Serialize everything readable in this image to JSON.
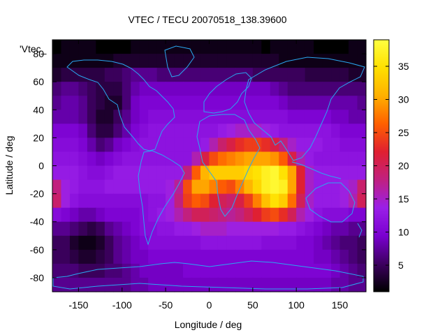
{
  "chart_data": {
    "type": "heatmap",
    "title": "VTEC / TECU 20070518_138.39600",
    "xlabel": "Longitude / deg",
    "ylabel": "Latitude / deg",
    "series_label": "'Vtec_",
    "xlim": [
      -180,
      180
    ],
    "ylim": [
      -90,
      90
    ],
    "xticks": [
      -150,
      -100,
      -50,
      0,
      50,
      100,
      150
    ],
    "yticks": [
      -80,
      -60,
      -40,
      -20,
      0,
      20,
      40,
      60,
      80
    ],
    "colorbar": {
      "range": [
        1,
        39
      ],
      "ticks": [
        5,
        10,
        15,
        20,
        25,
        30,
        35
      ],
      "palette": [
        "#000000",
        "#3d0060",
        "#7a00d0",
        "#9a20e8",
        "#c02080",
        "#e02030",
        "#ff6000",
        "#ffb000",
        "#ffe000",
        "#ffff40"
      ]
    },
    "grid": {
      "lon_step": 10,
      "lat_step": 10
    },
    "vtec_grid": [
      [
        1,
        2,
        2,
        2,
        2,
        1,
        1,
        1,
        1,
        2,
        2,
        2,
        2,
        2,
        2,
        2,
        2,
        2,
        2,
        2,
        2,
        2,
        2,
        2,
        1,
        2,
        2,
        2,
        2,
        2,
        1,
        1,
        1,
        1,
        2,
        2
      ],
      [
        2,
        2,
        2,
        2,
        2,
        2,
        2,
        3,
        3,
        3,
        3,
        3,
        3,
        3,
        3,
        3,
        3,
        3,
        3,
        3,
        3,
        3,
        3,
        3,
        3,
        3,
        2,
        2,
        2,
        2,
        2,
        2,
        2,
        2,
        2,
        2
      ],
      [
        3,
        4,
        4,
        4,
        4,
        4,
        5,
        5,
        6,
        7,
        7,
        7,
        6,
        6,
        6,
        6,
        6,
        6,
        6,
        6,
        6,
        6,
        6,
        5,
        5,
        5,
        5,
        5,
        5,
        4,
        4,
        4,
        4,
        4,
        3,
        3
      ],
      [
        6,
        7,
        7,
        6,
        5,
        4,
        4,
        4,
        6,
        8,
        9,
        9,
        9,
        9,
        9,
        9,
        9,
        9,
        9,
        9,
        9,
        9,
        9,
        9,
        9,
        8,
        7,
        6,
        6,
        6,
        6,
        6,
        6,
        6,
        6,
        6
      ],
      [
        7,
        8,
        8,
        7,
        5,
        4,
        3,
        3,
        6,
        9,
        10,
        10,
        10,
        10,
        10,
        10,
        10,
        10,
        10,
        10,
        10,
        10,
        10,
        10,
        10,
        10,
        9,
        8,
        8,
        8,
        8,
        8,
        8,
        8,
        8,
        7
      ],
      [
        8,
        8,
        8,
        7,
        5,
        3,
        3,
        5,
        7,
        9,
        10,
        11,
        11,
        11,
        11,
        11,
        11,
        11,
        11,
        11,
        11,
        11,
        11,
        11,
        11,
        11,
        11,
        10,
        10,
        10,
        10,
        10,
        9,
        9,
        8,
        8
      ],
      [
        10,
        10,
        10,
        9,
        6,
        4,
        4,
        6,
        8,
        10,
        11,
        12,
        12,
        12,
        12,
        12,
        12,
        12,
        12,
        13,
        14,
        15,
        15,
        15,
        14,
        13,
        12,
        12,
        12,
        12,
        12,
        12,
        11,
        10,
        10,
        10
      ],
      [
        11,
        11,
        11,
        10,
        8,
        6,
        7,
        9,
        10,
        11,
        12,
        12,
        12,
        12,
        12,
        12,
        12,
        13,
        16,
        19,
        21,
        23,
        24,
        24,
        23,
        21,
        18,
        15,
        13,
        13,
        13,
        12,
        12,
        11,
        11,
        11
      ],
      [
        12,
        12,
        12,
        11,
        10,
        9,
        10,
        11,
        12,
        12,
        12,
        12,
        12,
        12,
        12,
        12,
        16,
        21,
        25,
        27,
        28,
        29,
        30,
        30,
        30,
        29,
        26,
        21,
        16,
        13,
        12,
        12,
        12,
        12,
        12,
        12
      ],
      [
        13,
        13,
        13,
        12,
        11,
        11,
        12,
        13,
        13,
        13,
        13,
        13,
        13,
        13,
        13,
        18,
        26,
        31,
        33,
        33,
        33,
        33,
        34,
        35,
        37,
        38,
        35,
        30,
        22,
        15,
        13,
        13,
        13,
        13,
        13,
        13
      ],
      [
        18,
        14,
        13,
        12,
        12,
        12,
        13,
        13,
        13,
        13,
        13,
        13,
        13,
        14,
        17,
        25,
        30,
        30,
        28,
        26,
        25,
        28,
        31,
        34,
        37,
        38,
        37,
        30,
        22,
        15,
        13,
        13,
        13,
        14,
        15,
        19
      ],
      [
        19,
        14,
        12,
        11,
        11,
        11,
        11,
        11,
        11,
        11,
        11,
        12,
        12,
        14,
        18,
        24,
        26,
        25,
        22,
        20,
        19,
        21,
        24,
        28,
        32,
        35,
        33,
        27,
        20,
        15,
        13,
        13,
        13,
        14,
        16,
        20
      ],
      [
        11,
        10,
        9,
        8,
        8,
        9,
        10,
        10,
        10,
        10,
        11,
        12,
        13,
        14,
        16,
        18,
        20,
        20,
        19,
        18,
        17,
        18,
        20,
        22,
        24,
        25,
        23,
        20,
        16,
        14,
        12,
        11,
        11,
        11,
        10,
        10
      ],
      [
        7,
        7,
        6,
        5,
        4,
        5,
        7,
        8,
        9,
        10,
        11,
        11,
        12,
        12,
        13,
        13,
        14,
        15,
        15,
        15,
        14,
        14,
        14,
        14,
        14,
        14,
        13,
        13,
        12,
        11,
        10,
        9,
        8,
        8,
        7,
        7
      ],
      [
        5,
        5,
        3,
        2,
        2,
        3,
        5,
        7,
        8,
        9,
        10,
        11,
        11,
        11,
        11,
        11,
        11,
        12,
        12,
        12,
        12,
        12,
        12,
        12,
        11,
        11,
        11,
        11,
        10,
        10,
        9,
        8,
        7,
        6,
        6,
        5
      ],
      [
        5,
        5,
        4,
        3,
        3,
        4,
        5,
        7,
        8,
        9,
        9,
        10,
        10,
        10,
        10,
        10,
        10,
        10,
        10,
        10,
        10,
        10,
        10,
        10,
        10,
        10,
        10,
        10,
        10,
        10,
        9,
        9,
        8,
        7,
        6,
        5
      ],
      [
        6,
        6,
        6,
        5,
        5,
        5,
        6,
        6,
        7,
        8,
        9,
        9,
        9,
        9,
        9,
        10,
        10,
        10,
        10,
        10,
        10,
        10,
        10,
        10,
        10,
        10,
        10,
        10,
        10,
        10,
        10,
        10,
        9,
        8,
        7,
        6
      ],
      [
        7,
        7,
        7,
        7,
        7,
        7,
        7,
        7,
        7,
        8,
        8,
        9,
        9,
        9,
        9,
        9,
        9,
        9,
        9,
        9,
        9,
        9,
        9,
        9,
        9,
        9,
        9,
        9,
        9,
        9,
        9,
        9,
        8,
        8,
        7,
        7
      ]
    ]
  }
}
